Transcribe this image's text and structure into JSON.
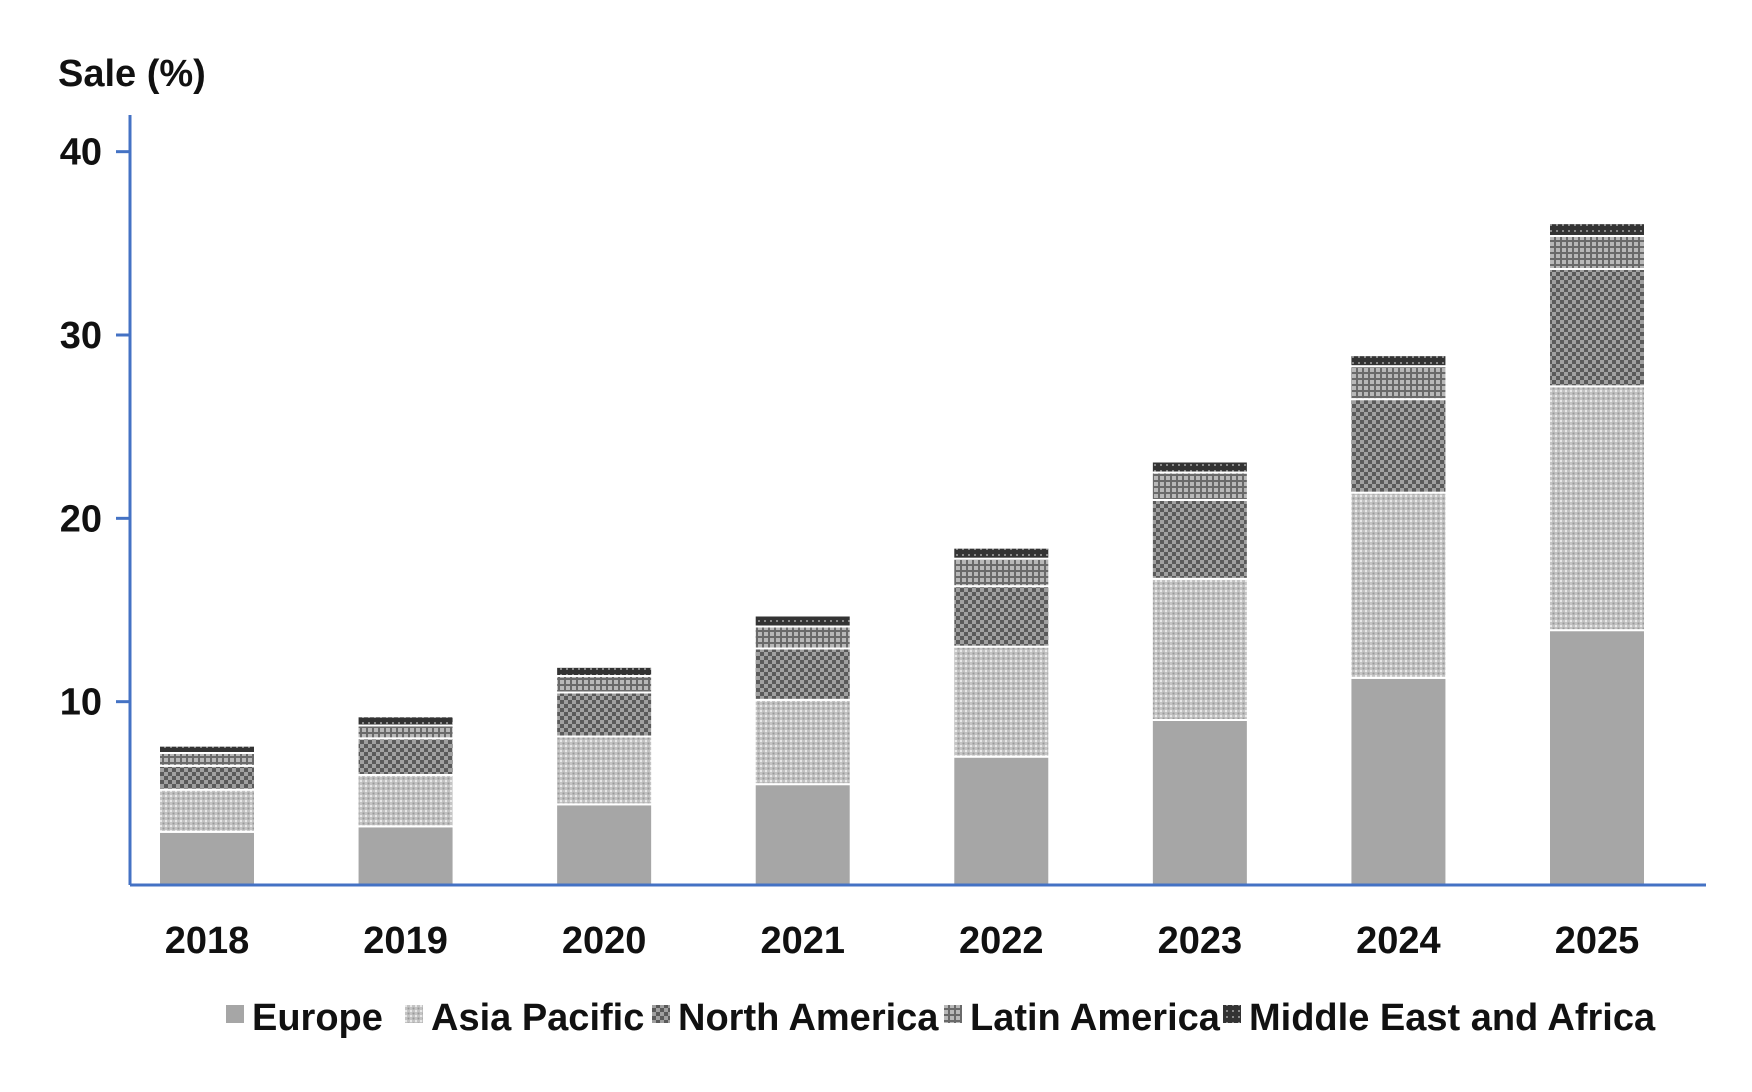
{
  "chart_data": {
    "type": "bar",
    "stacked": true,
    "title": "",
    "xlabel": "",
    "ylabel": "Sale (%)",
    "ylim": [
      0,
      42
    ],
    "yticks": [
      10,
      20,
      30,
      40
    ],
    "grid": false,
    "legend_position": "bottom",
    "categories": [
      "2018",
      "2019",
      "2020",
      "2021",
      "2022",
      "2023",
      "2024",
      "2025"
    ],
    "series": [
      {
        "name": "Europe",
        "pattern": "solid",
        "color": "#a6a6a6",
        "values": [
          2.9,
          3.2,
          4.4,
          5.5,
          7.0,
          9.0,
          11.3,
          13.9
        ]
      },
      {
        "name": "Asia Pacific",
        "pattern": "fine-dots",
        "color": "#bdbdbd",
        "values": [
          2.3,
          2.8,
          3.7,
          4.6,
          6.0,
          7.7,
          10.1,
          13.3
        ]
      },
      {
        "name": "North America",
        "pattern": "checker",
        "color": "#777777",
        "values": [
          1.3,
          2.0,
          2.4,
          2.8,
          3.3,
          4.3,
          5.1,
          6.4
        ]
      },
      {
        "name": "Latin America",
        "pattern": "grid",
        "color": "#999999",
        "values": [
          0.7,
          0.7,
          0.9,
          1.2,
          1.5,
          1.5,
          1.8,
          1.8
        ]
      },
      {
        "name": "Middle East and Africa",
        "pattern": "dark-dots",
        "color": "#3a3a3a",
        "values": [
          0.4,
          0.5,
          0.5,
          0.6,
          0.6,
          0.6,
          0.6,
          0.7
        ]
      }
    ]
  }
}
